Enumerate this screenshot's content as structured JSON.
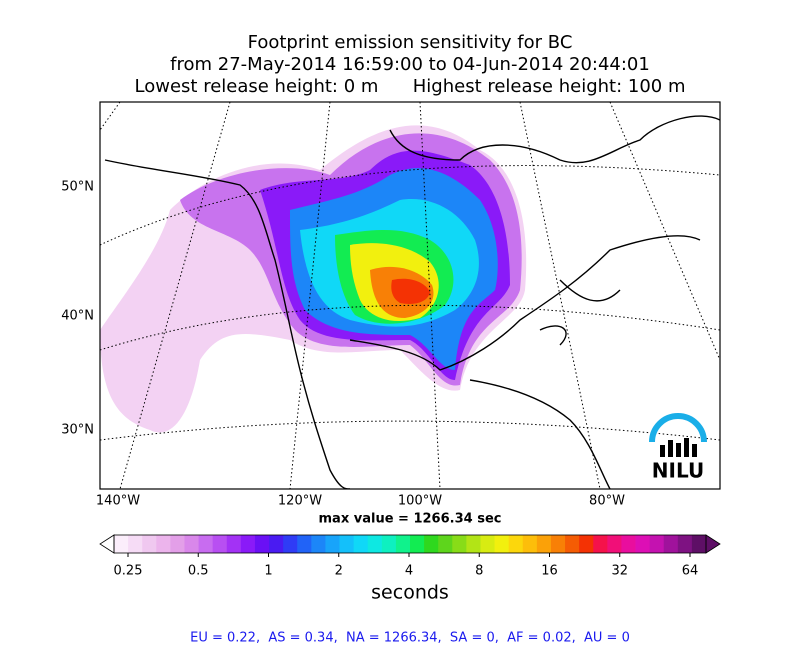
{
  "header": {
    "title_lines": [
      "Footprint emission sensitivity for BC",
      "from 27-May-2014 16:59:00 to 04-Jun-2014 20:44:01",
      "Lowest release height: 0 m      Highest release height: 100 m"
    ]
  },
  "map": {
    "lat_labels": [
      "50°N",
      "40°N",
      "30°N"
    ],
    "lon_labels": [
      "140°W",
      "120°W",
      "100°W",
      "80°W"
    ],
    "max_value_text": "max value = 1266.34 sec",
    "logo": "NILU"
  },
  "colorbar": {
    "ticks": [
      0.25,
      0.5,
      1,
      2,
      4,
      8,
      16,
      32,
      64
    ],
    "label": "seconds",
    "colors": [
      "#fbeefb",
      "#f6dcf6",
      "#f0c8f0",
      "#ecb4ec",
      "#e39fe8",
      "#d987ea",
      "#c86cf0",
      "#b84ff2",
      "#a332f5",
      "#8a1af8",
      "#6a10f5",
      "#4a1bf2",
      "#2f3cf6",
      "#2163f7",
      "#1c86f8",
      "#18a4fa",
      "#14c0fa",
      "#10d8f7",
      "#0ee8e2",
      "#0ef0c0",
      "#10f28c",
      "#12ec52",
      "#2fd81e",
      "#5ed51c",
      "#88dc18",
      "#b2e416",
      "#d8ec12",
      "#f2f00e",
      "#fcd70c",
      "#fdbe0a",
      "#fba108",
      "#f88006",
      "#f55c04",
      "#f43204",
      "#f5124a",
      "#f10f78",
      "#e90e9e",
      "#dd0fb5",
      "#c412b0",
      "#a0129c",
      "#7e1282",
      "#5e0f66"
    ]
  },
  "footer": {
    "text": "EU = 0.22,  AS = 0.34,  NA = 1266.34,  SA = 0,  AF = 0.02,  AU = 0"
  }
}
